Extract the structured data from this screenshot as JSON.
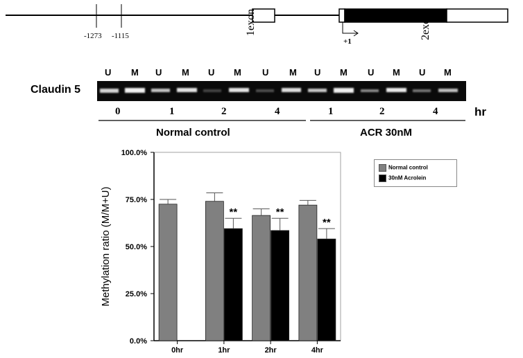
{
  "gene_map": {
    "positions": [
      "-1273",
      "-1115"
    ],
    "exon1_label": "1exon",
    "exon2_label": "2exon",
    "tss_label": "+1"
  },
  "gel": {
    "gene_label": "Claudin 5",
    "lane_labels": [
      "U",
      "M",
      "U",
      "M",
      "U",
      "M",
      "U",
      "M",
      "U",
      "M",
      "U",
      "M",
      "U",
      "M"
    ],
    "time_labels": [
      "0",
      "1",
      "2",
      "4",
      "1",
      "2",
      "4"
    ],
    "time_unit": "hr",
    "group_labels": [
      "Normal control",
      "ACR 30nM"
    ]
  },
  "chart_data": {
    "type": "bar",
    "categories": [
      "0hr",
      "1hr",
      "2hr",
      "4hr"
    ],
    "series": [
      {
        "name": "Normal control",
        "color": "#808080",
        "values": [
          72.5,
          74.0,
          66.5,
          72.0
        ],
        "errors": [
          2.5,
          4.5,
          3.5,
          2.5
        ]
      },
      {
        "name": "30nM Acrolein",
        "color": "#000000",
        "values": [
          null,
          59.5,
          58.5,
          54.0
        ],
        "errors": [
          null,
          5.5,
          6.5,
          5.5
        ]
      }
    ],
    "significance": [
      null,
      "**",
      "**",
      "**"
    ],
    "ylabel": "Methylation ratio (M/M+U)",
    "yticks": [
      "0.0%",
      "25.0%",
      "50.0%",
      "75.0%",
      "100.0%"
    ],
    "ylim": [
      0,
      100
    ],
    "legend_position": "top-right",
    "grid": false
  }
}
